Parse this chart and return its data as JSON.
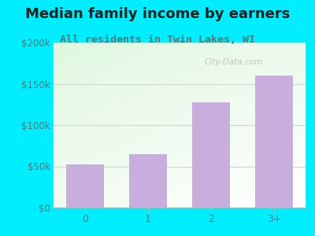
{
  "title": "Median family income by earners",
  "subtitle": "All residents in Twin Lakes, WI",
  "categories": [
    "0",
    "1",
    "2",
    "3+"
  ],
  "values": [
    52000,
    65000,
    128000,
    160000
  ],
  "bar_color": "#c8aedd",
  "ylim": [
    0,
    200000
  ],
  "yticks": [
    0,
    50000,
    100000,
    150000,
    200000
  ],
  "ytick_labels": [
    "$0",
    "$50k",
    "$100k",
    "$150k",
    "$200k"
  ],
  "outer_bg": "#00eeff",
  "plot_bg_color": "#eef8ee",
  "title_fontsize": 13,
  "subtitle_fontsize": 9.5,
  "title_color": "#222222",
  "subtitle_color": "#557777",
  "watermark": "City-Data.com",
  "grid_color": "#ccddcc",
  "ytick_color": "#557777",
  "xtick_color": "#557777"
}
